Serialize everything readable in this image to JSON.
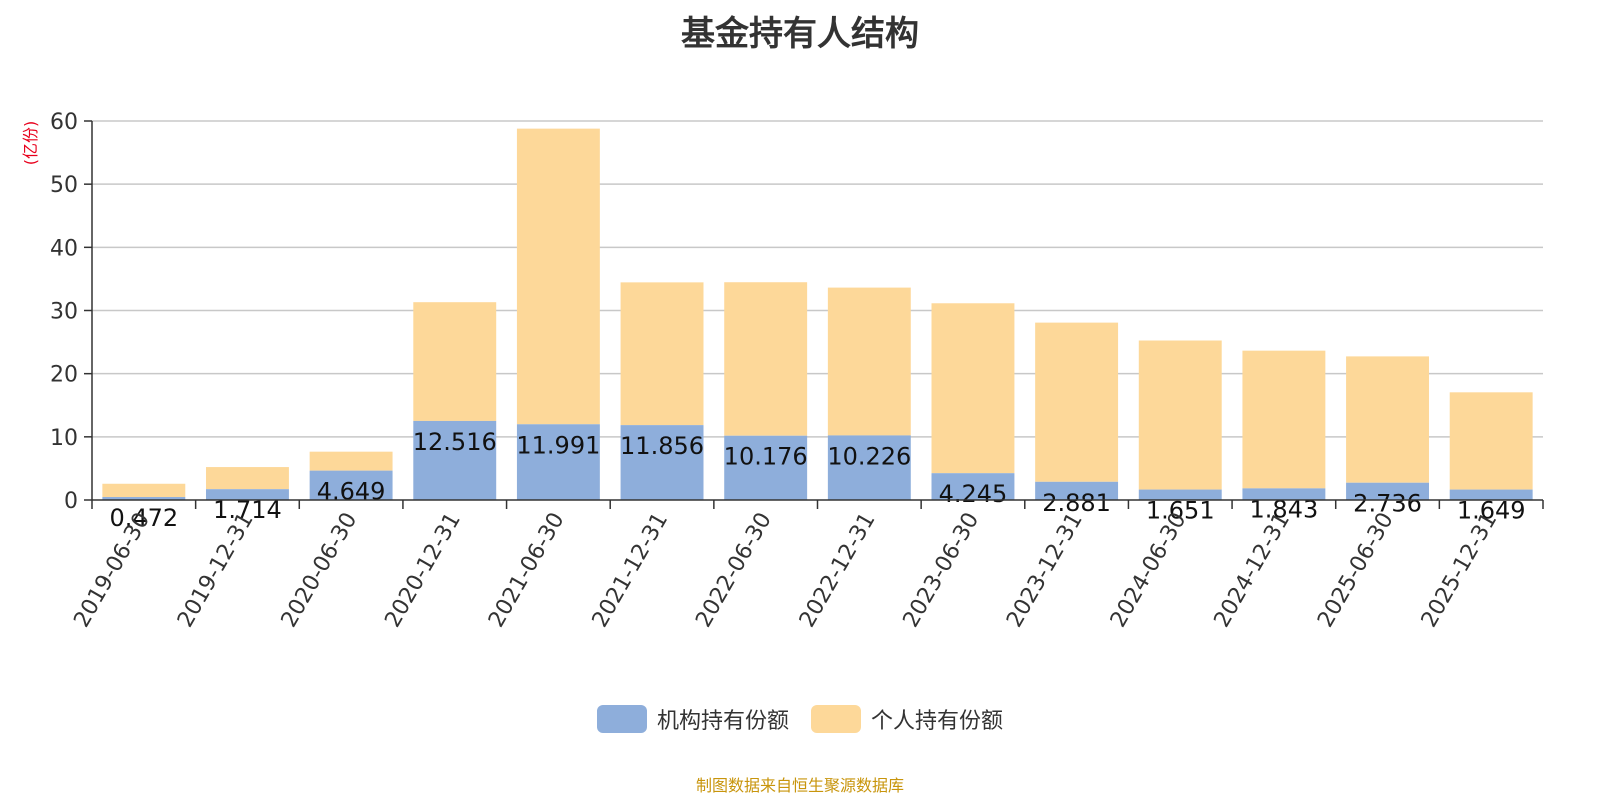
{
  "chart_data": {
    "type": "bar",
    "stacked": true,
    "title": "基金持有人结构",
    "unit_label": "(亿份)",
    "categories": [
      "2019-06-30",
      "2019-12-31",
      "2020-06-30",
      "2020-12-31",
      "2021-06-30",
      "2021-12-31",
      "2022-06-30",
      "2022-12-31",
      "2023-06-30",
      "2023-12-31",
      "2024-06-30",
      "2024-12-31",
      "2025-06-30",
      "2025-12-31"
    ],
    "series": [
      {
        "name": "机构持有份额",
        "color": "#8eaedb",
        "values": [
          0.472,
          1.714,
          4.649,
          12.516,
          11.991,
          11.856,
          10.176,
          10.226,
          4.245,
          2.881,
          1.651,
          1.843,
          2.736,
          1.649
        ],
        "labels": [
          "0.472",
          "1.714",
          "4.649",
          "12.516",
          "11.991",
          "11.856",
          "10.176",
          "10.226",
          "4.245",
          "2.881",
          "1.651",
          "1.843",
          "2.736",
          "1.649"
        ]
      },
      {
        "name": "个人持有份额",
        "color": "#fdd899",
        "values": [
          2.1,
          3.5,
          3.0,
          18.8,
          46.8,
          22.6,
          24.3,
          23.4,
          26.9,
          25.2,
          23.6,
          21.8,
          20.0,
          15.4
        ]
      }
    ],
    "ylim": [
      0,
      60
    ],
    "yticks": [
      0,
      10,
      20,
      30,
      40,
      50,
      60
    ],
    "grid": true,
    "legend_position": "bottom"
  },
  "source_text": "制图数据来自恒生聚源数据库"
}
